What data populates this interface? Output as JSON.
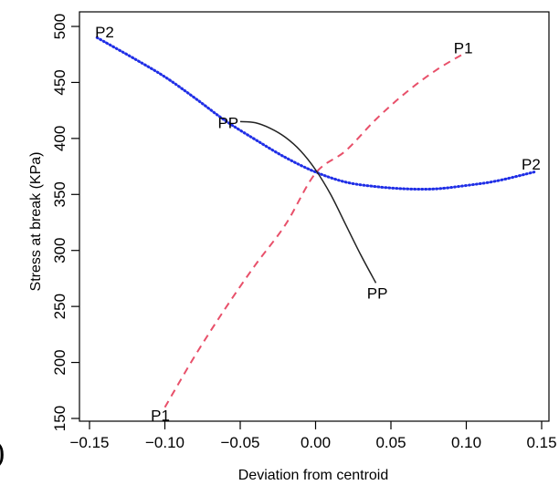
{
  "chart_data": {
    "type": "line",
    "title": "",
    "xlabel": "Deviation from centroid",
    "ylabel": "Stress at break (KPa)",
    "xlim": [
      -0.15,
      0.15
    ],
    "ylim": [
      150,
      500
    ],
    "x_ticks": [
      -0.15,
      -0.1,
      -0.05,
      0.0,
      0.05,
      0.1,
      0.15
    ],
    "x_tick_labels": [
      "−0.15",
      "−0.10",
      "−0.05",
      "0.00",
      "0.05",
      "0.10",
      "0.15"
    ],
    "y_ticks": [
      150,
      200,
      250,
      300,
      350,
      400,
      450,
      500
    ],
    "y_tick_labels": [
      "150",
      "200",
      "250",
      "300",
      "350",
      "400",
      "450",
      "500"
    ],
    "grid": false,
    "series": [
      {
        "name": "P1",
        "color": "#e8506a",
        "style": "dashed",
        "x": [
          -0.1,
          -0.08,
          -0.06,
          -0.04,
          -0.02,
          0.0,
          0.02,
          0.04,
          0.06,
          0.08,
          0.1
        ],
        "y": [
          160,
          206,
          248,
          287,
          323,
          369,
          389,
          417,
          441,
          461,
          477
        ],
        "labels": [
          {
            "text": "P1",
            "x": -0.103,
            "y": 153
          },
          {
            "text": "P1",
            "x": 0.098,
            "y": 481
          }
        ]
      },
      {
        "name": "P2",
        "color": "#1f2ee6",
        "style": "dotted",
        "x": [
          -0.145,
          -0.12,
          -0.1,
          -0.08,
          -0.06,
          -0.04,
          -0.02,
          0.0,
          0.02,
          0.04,
          0.06,
          0.08,
          0.1,
          0.12,
          0.145
        ],
        "y": [
          490,
          471,
          455,
          436,
          416,
          399,
          383,
          370,
          361,
          357,
          355,
          355,
          358,
          362,
          370
        ],
        "labels": [
          {
            "text": "P2",
            "x": -0.14,
            "y": 495
          },
          {
            "text": "P2",
            "x": 0.143,
            "y": 377
          }
        ]
      },
      {
        "name": "PP",
        "color": "#222222",
        "style": "solid",
        "x": [
          -0.05,
          -0.04,
          -0.03,
          -0.02,
          -0.01,
          0.0,
          0.01,
          0.02,
          0.03,
          0.04
        ],
        "y": [
          415,
          414,
          409,
          401,
          389,
          372,
          350,
          323,
          296,
          271
        ],
        "labels": [
          {
            "text": "PP",
            "x": -0.058,
            "y": 414
          },
          {
            "text": "PP",
            "x": 0.041,
            "y": 262
          }
        ]
      }
    ]
  },
  "panel_mark": ")"
}
